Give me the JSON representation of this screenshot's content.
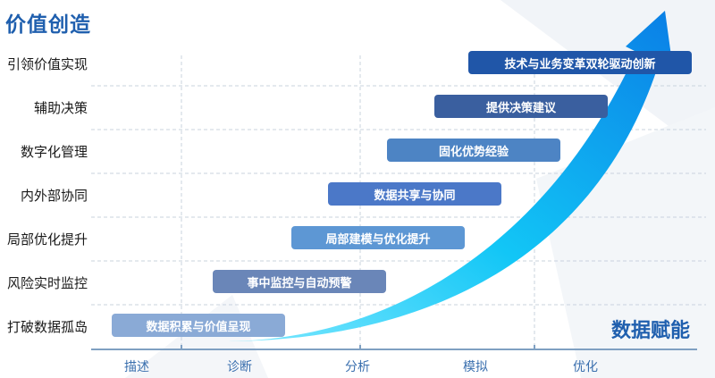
{
  "title": "价值创造",
  "arrow_label": "数据赋能",
  "colors": {
    "title": "#1f5fae",
    "grid": "#c9d3de",
    "axis": "#7fa0c2",
    "arrow_light": "#1be4ff",
    "arrow_dark": "#0a8cec"
  },
  "rows": [
    {
      "label": "引领价值实现",
      "bar": "技术与业务变革双轮驱动创新",
      "color": "#2056a8"
    },
    {
      "label": "辅助决策",
      "bar": "提供决策建议",
      "color": "#3a5f9f"
    },
    {
      "label": "数字化管理",
      "bar": "固化优势经验",
      "color": "#4d84c4"
    },
    {
      "label": "内外部协同",
      "bar": "数据共享与协同",
      "color": "#4b78c8"
    },
    {
      "label": "局部优化提升",
      "bar": "局部建模与优化提升",
      "color": "#5d97d4"
    },
    {
      "label": "风险实时监控",
      "bar": "事中监控与自动预警",
      "color": "#6a86b8"
    },
    {
      "label": "打破数据孤岛",
      "bar": "数据积累与价值呈现",
      "color": "#8aaad6"
    }
  ],
  "axis": [
    "描述",
    "诊断",
    "分析",
    "模拟",
    "优化"
  ]
}
